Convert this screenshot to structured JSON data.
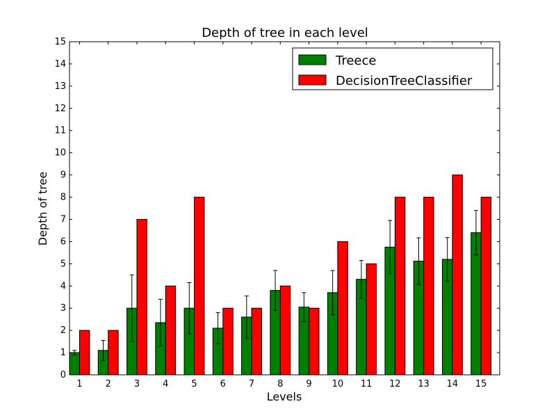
{
  "chart_data": {
    "type": "bar",
    "title": "Depth of tree in each level",
    "xlabel": "Levels",
    "ylabel": "Depth of tree",
    "ylim": [
      0,
      15
    ],
    "yticks": [
      0,
      1,
      2,
      3,
      4,
      5,
      6,
      7,
      8,
      9,
      10,
      11,
      12,
      13,
      14,
      15
    ],
    "categories": [
      "1",
      "2",
      "3",
      "4",
      "5",
      "6",
      "7",
      "8",
      "9",
      "10",
      "11",
      "12",
      "13",
      "14",
      "15"
    ],
    "legend_position": "top-right",
    "grid": false,
    "series": [
      {
        "name": "Treece",
        "color": "#008000",
        "values": [
          1.0,
          1.1,
          3.0,
          2.35,
          3.0,
          2.1,
          2.6,
          3.8,
          3.05,
          3.7,
          4.3,
          5.75,
          5.12,
          5.2,
          6.4
        ],
        "errors": [
          0.1,
          0.45,
          1.5,
          1.05,
          1.15,
          0.7,
          0.95,
          0.9,
          0.65,
          1.0,
          0.85,
          1.2,
          1.05,
          0.98,
          1.0
        ]
      },
      {
        "name": "DecisionTreeClassifier",
        "color": "#ff0000",
        "values": [
          2,
          2,
          7,
          4,
          8,
          3,
          3,
          4,
          3,
          6,
          5,
          8,
          8,
          9,
          8
        ]
      }
    ]
  }
}
